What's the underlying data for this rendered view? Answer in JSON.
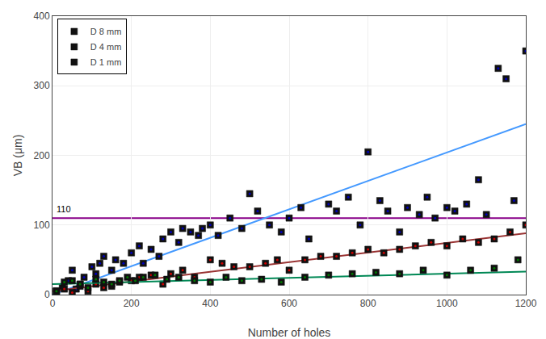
{
  "chart_data": {
    "type": "scatter",
    "xlabel": "Number of holes",
    "ylabel": "VB (μm)",
    "xlim": [
      0,
      1200
    ],
    "ylim": [
      0,
      400
    ],
    "xticks": [
      0,
      200,
      400,
      600,
      800,
      1000,
      1200
    ],
    "yticks": [
      0,
      100,
      200,
      300,
      400
    ],
    "grid": true,
    "legend": "upper left",
    "hline": {
      "value": 110,
      "label": "110",
      "color": "#880088"
    },
    "series": [
      {
        "name": "D 8 mm",
        "color": "#0000bb",
        "marker": "square",
        "x": [
          10,
          25,
          40,
          50,
          60,
          70,
          80,
          100,
          110,
          120,
          130,
          150,
          160,
          180,
          200,
          220,
          230,
          250,
          270,
          280,
          300,
          320,
          330,
          350,
          370,
          380,
          400,
          420,
          450,
          480,
          500,
          520,
          550,
          580,
          600,
          630,
          650,
          700,
          720,
          750,
          780,
          800,
          830,
          850,
          880,
          900,
          930,
          950,
          970,
          1000,
          1020,
          1050,
          1080,
          1100,
          1130,
          1150,
          1170,
          1200
        ],
        "values": [
          5,
          10,
          20,
          35,
          8,
          15,
          25,
          40,
          30,
          45,
          55,
          35,
          50,
          45,
          60,
          70,
          45,
          65,
          55,
          80,
          90,
          75,
          95,
          90,
          85,
          95,
          100,
          85,
          110,
          95,
          145,
          120,
          100,
          90,
          110,
          125,
          80,
          130,
          120,
          140,
          100,
          205,
          135,
          120,
          90,
          125,
          115,
          140,
          110,
          125,
          120,
          130,
          165,
          115,
          325,
          310,
          135,
          350
        ],
        "trend": {
          "x": [
            0,
            1200
          ],
          "values": [
            0,
            245
          ],
          "color": "#4499ff"
        }
      },
      {
        "name": "D 4 mm",
        "color": "#cc0000",
        "marker": "square",
        "x": [
          10,
          30,
          50,
          70,
          90,
          110,
          130,
          150,
          170,
          200,
          220,
          250,
          280,
          300,
          330,
          360,
          400,
          430,
          460,
          500,
          540,
          570,
          600,
          640,
          680,
          720,
          760,
          800,
          840,
          880,
          920,
          960,
          1000,
          1040,
          1080,
          1120,
          1160,
          1200
        ],
        "values": [
          5,
          8,
          3,
          12,
          5,
          15,
          10,
          12,
          18,
          20,
          25,
          28,
          15,
          30,
          35,
          25,
          50,
          45,
          40,
          40,
          45,
          50,
          35,
          50,
          55,
          55,
          60,
          65,
          60,
          65,
          70,
          75,
          70,
          80,
          75,
          80,
          90,
          100
        ],
        "trend": {
          "x": [
            0,
            1200
          ],
          "values": [
            5,
            88
          ],
          "color": "#993333"
        }
      },
      {
        "name": "D 1 mm",
        "color": "#007700",
        "marker": "square",
        "x": [
          10,
          30,
          50,
          70,
          90,
          110,
          130,
          150,
          170,
          190,
          210,
          230,
          260,
          290,
          320,
          360,
          400,
          440,
          480,
          530,
          580,
          640,
          700,
          760,
          820,
          880,
          940,
          1000,
          1060,
          1120,
          1180
        ],
        "values": [
          5,
          18,
          20,
          15,
          10,
          22,
          18,
          15,
          20,
          25,
          20,
          25,
          28,
          22,
          25,
          20,
          18,
          25,
          20,
          22,
          18,
          25,
          28,
          30,
          32,
          30,
          35,
          28,
          35,
          38,
          50
        ],
        "trend": {
          "x": [
            0,
            1200
          ],
          "values": [
            15,
            33
          ],
          "color": "#008855"
        }
      }
    ]
  }
}
